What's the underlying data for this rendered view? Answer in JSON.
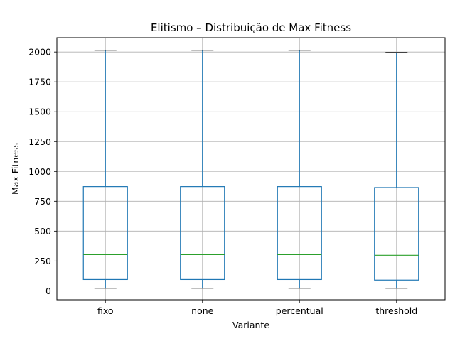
{
  "chart_data": {
    "type": "boxplot",
    "title": "Elitismo – Distribuição de Max Fitness",
    "xlabel": "Variante",
    "ylabel": "Max Fitness",
    "ylim": [
      -75,
      2120
    ],
    "yticks": [
      0,
      250,
      500,
      750,
      1000,
      1250,
      1500,
      1750,
      2000
    ],
    "grid": true,
    "categories": [
      "fixo",
      "none",
      "percentual",
      "threshold"
    ],
    "boxes": [
      {
        "category": "fixo",
        "whisker_low": 22,
        "q1": 95,
        "median": 303,
        "q3": 873,
        "whisker_high": 2015
      },
      {
        "category": "none",
        "whisker_low": 22,
        "q1": 95,
        "median": 303,
        "q3": 873,
        "whisker_high": 2015
      },
      {
        "category": "percentual",
        "whisker_low": 22,
        "q1": 95,
        "median": 303,
        "q3": 873,
        "whisker_high": 2015
      },
      {
        "category": "threshold",
        "whisker_low": 22,
        "q1": 90,
        "median": 298,
        "q3": 865,
        "whisker_high": 1995
      }
    ],
    "colors": {
      "box": "#1f77b4",
      "median": "#2ca02c",
      "cap": "#000000",
      "grid": "#b0b0b0"
    }
  }
}
